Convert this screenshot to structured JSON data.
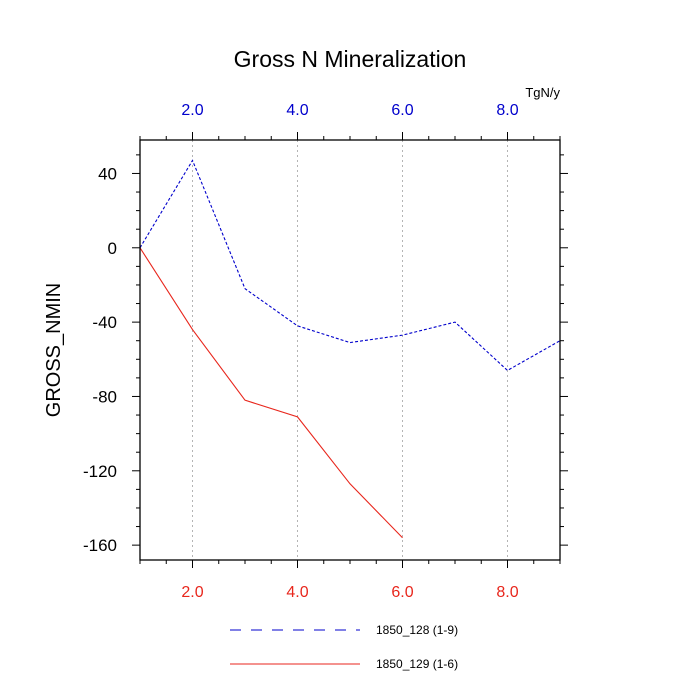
{
  "chart_data": {
    "type": "line",
    "title": "Gross N Mineralization",
    "ylabel": "GROSS_NMIN",
    "units": "TgN/y",
    "xlim": [
      1,
      9
    ],
    "ylim": [
      -168,
      58
    ],
    "x_ticks": [
      2,
      4,
      6,
      8
    ],
    "x_tick_labels": [
      "2.0",
      "4.0",
      "6.0",
      "8.0"
    ],
    "y_ticks": [
      40,
      0,
      -40,
      -80,
      -120,
      -160
    ],
    "y_tick_labels": [
      "40",
      "0",
      "-40",
      "-80",
      "-120",
      "-160"
    ],
    "grid": "vertical dotted at major x ticks",
    "legend_position": "bottom",
    "series": [
      {
        "name": "1850_128 (1-9)",
        "color": "#0000cc",
        "dash": "dashed",
        "x": [
          1,
          2,
          3,
          4,
          5,
          6,
          7,
          8,
          9
        ],
        "y": [
          0,
          47,
          -22,
          -42,
          -51,
          -47,
          -40,
          -66,
          -50
        ]
      },
      {
        "name": "1850_129 (1-6)",
        "color": "#e8261c",
        "dash": "solid",
        "x": [
          1,
          2,
          3,
          4,
          5,
          6
        ],
        "y": [
          0,
          -44,
          -82,
          -91,
          -127,
          -156
        ]
      }
    ],
    "top_axis_color": "#0000cc",
    "bottom_axis_color": "#e8261c"
  }
}
